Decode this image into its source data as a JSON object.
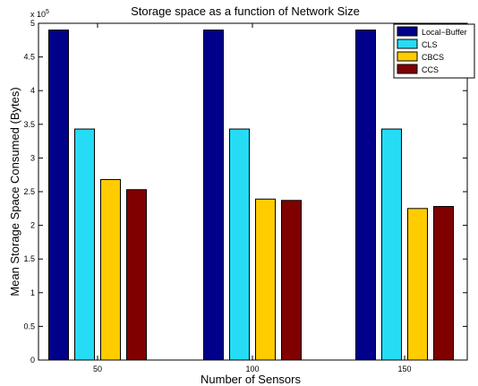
{
  "chart_data": {
    "type": "bar",
    "title": "Storage space as a function of Network Size",
    "xlabel": "Number of Sensors",
    "ylabel": "Mean Storage Space Consumed (Bytes)",
    "exponent_prefix": "x 10",
    "exponent_power": "5",
    "categories": [
      "50",
      "100",
      "150"
    ],
    "ylim": [
      0,
      5
    ],
    "yticks": [
      "0",
      "0.5",
      "1",
      "1.5",
      "2",
      "2.5",
      "3",
      "3.5",
      "4",
      "4.5",
      "5"
    ],
    "grid": false,
    "legend_position": "top-right",
    "series": [
      {
        "name": "Local−Buffer",
        "color": "#00008b",
        "values": [
          4.9,
          4.9,
          4.9
        ]
      },
      {
        "name": "CLS",
        "color": "#26dcf5",
        "values": [
          3.43,
          3.43,
          3.43
        ]
      },
      {
        "name": "CBCS",
        "color": "#ffcc00",
        "values": [
          2.68,
          2.39,
          2.25
        ]
      },
      {
        "name": "CCS",
        "color": "#800000",
        "values": [
          2.53,
          2.37,
          2.28
        ]
      }
    ]
  }
}
